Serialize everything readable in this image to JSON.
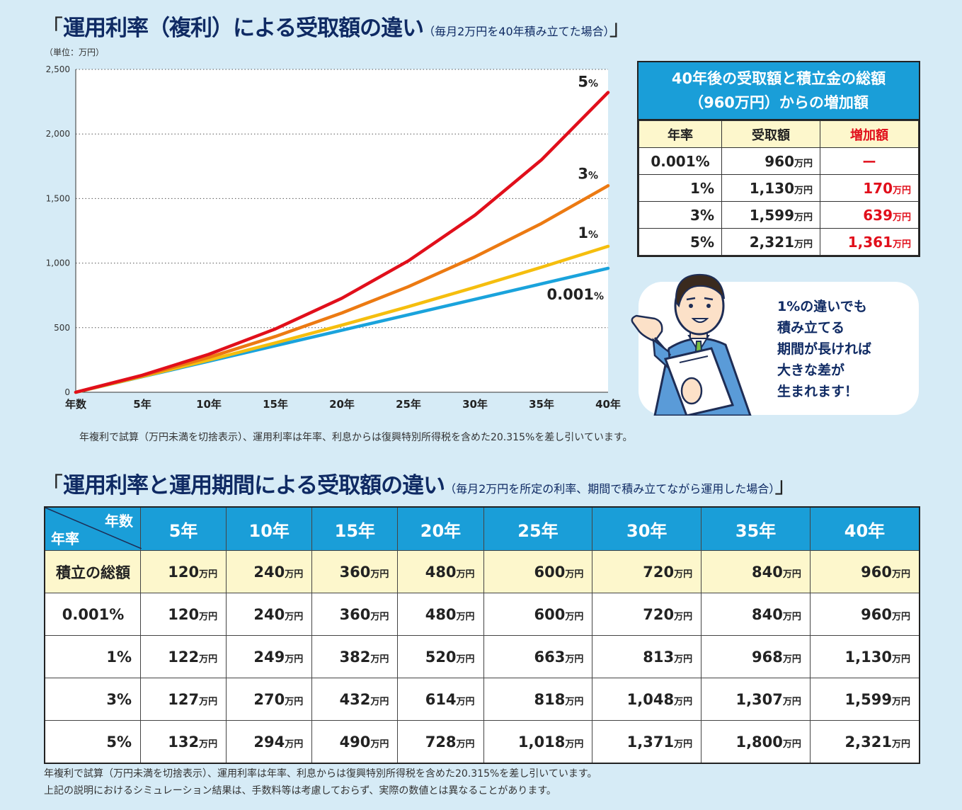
{
  "title1": {
    "open": "「",
    "main": "運用利率（複利）による受取額の違い",
    "sub": "（毎月2万円を40年積み立てた場合）",
    "close": "」"
  },
  "chart_data": {
    "type": "line",
    "unit_label": "（単位：万円）",
    "x": [
      "年数",
      "5年",
      "10年",
      "15年",
      "20年",
      "25年",
      "30年",
      "35年",
      "40年"
    ],
    "ylim": [
      0,
      2500
    ],
    "yticks": [
      "0",
      "500",
      "1,000",
      "1,500",
      "2,000",
      "2,500"
    ],
    "ytick_values": [
      0,
      500,
      1000,
      1500,
      2000,
      2500
    ],
    "grid": "horizontal-dotted",
    "series": [
      {
        "name": "0.001%",
        "color": "#1aa3dc",
        "values": [
          0,
          120,
          240,
          360,
          480,
          600,
          720,
          840,
          960
        ]
      },
      {
        "name": "1%",
        "color": "#f5be0e",
        "values": [
          0,
          122,
          249,
          382,
          520,
          663,
          813,
          968,
          1130
        ]
      },
      {
        "name": "3%",
        "color": "#ec7a12",
        "values": [
          0,
          127,
          270,
          432,
          614,
          818,
          1048,
          1307,
          1599
        ]
      },
      {
        "name": "5%",
        "color": "#e10f1b",
        "values": [
          0,
          132,
          294,
          490,
          728,
          1018,
          1371,
          1800,
          2321
        ]
      }
    ]
  },
  "summary": {
    "title_line1": "40年後の受取額と積立金の総額",
    "title_line2": "（960万円）からの増加額",
    "headers": [
      "年率",
      "受取額",
      "増加額"
    ],
    "rows": [
      {
        "rate": "0.001%",
        "amount": "960",
        "unit": "万円",
        "increase": "ー",
        "inc_unit": ""
      },
      {
        "rate": "1%",
        "amount": "1,130",
        "unit": "万円",
        "increase": "170",
        "inc_unit": "万円"
      },
      {
        "rate": "3%",
        "amount": "1,599",
        "unit": "万円",
        "increase": "639",
        "inc_unit": "万円"
      },
      {
        "rate": "5%",
        "amount": "2,321",
        "unit": "万円",
        "increase": "1,361",
        "inc_unit": "万円"
      }
    ],
    "header_colors": {
      "increase": "#e10f1b",
      "header_bg": "#1a9ed8",
      "row_bg": "#fdf7cc"
    }
  },
  "bubble": {
    "lines": [
      "1%の違いでも",
      "積み立てる",
      "期間が長ければ",
      "大きな差が",
      "生まれます！"
    ]
  },
  "note1": "年複利で試算（万円未満を切捨表示）、運用利率は年率、利息からは復興特別所得税を含めた20.315%を差し引いています。",
  "title2": {
    "open": "「",
    "main": "運用利率と運用期間による受取額の違い",
    "sub": "（毎月2万円を所定の利率、期間で積み立てながら運用した場合）",
    "close": "」"
  },
  "table": {
    "corner_top": "年数",
    "corner_bottom": "年率",
    "columns": [
      "5年",
      "10年",
      "15年",
      "20年",
      "25年",
      "30年",
      "35年",
      "40年"
    ],
    "unit": "万円",
    "rows": [
      {
        "label": "積立の総額",
        "values": [
          "120",
          "240",
          "360",
          "480",
          "600",
          "720",
          "840",
          "960"
        ]
      },
      {
        "label": "0.001%",
        "values": [
          "120",
          "240",
          "360",
          "480",
          "600",
          "720",
          "840",
          "960"
        ]
      },
      {
        "label": "1%",
        "values": [
          "122",
          "249",
          "382",
          "520",
          "663",
          "813",
          "968",
          "1,130"
        ]
      },
      {
        "label": "3%",
        "values": [
          "127",
          "270",
          "432",
          "614",
          "818",
          "1,048",
          "1,307",
          "1,599"
        ]
      },
      {
        "label": "5%",
        "values": [
          "132",
          "294",
          "490",
          "728",
          "1,018",
          "1,371",
          "1,800",
          "2,321"
        ]
      }
    ]
  },
  "note2_line1": "年複利で試算（万円未満を切捨表示）、運用利率は年率、利息からは復興特別所得税を含めた20.315%を差し引いています。",
  "note2_line2": "上記の説明におけるシミュレーション結果は、手数料等は考慮しておらず、実際の数値とは異なることがあります。"
}
